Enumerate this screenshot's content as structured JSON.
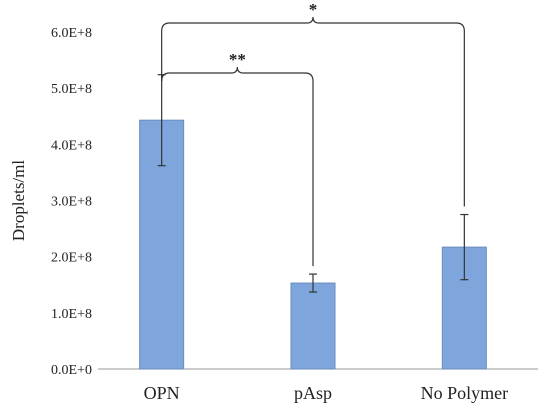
{
  "chart_data": {
    "type": "bar",
    "title": "",
    "xlabel": "",
    "ylabel": "Droplets/ml",
    "categories": [
      "OPN",
      "pAsp",
      "No Polymer"
    ],
    "values": [
      443000000,
      153000000,
      217000000
    ],
    "error": [
      81000000,
      16000000,
      58000000
    ],
    "ylim": [
      0,
      600000000
    ],
    "yticks": [
      0,
      100000000,
      200000000,
      300000000,
      400000000,
      500000000,
      600000000
    ],
    "ytick_labels": [
      "0.0E+0",
      "1.0E+8",
      "2.0E+8",
      "3.0E+8",
      "4.0E+8",
      "5.0E+8",
      "6.0E+8"
    ],
    "grid": false,
    "legend": "none",
    "bar_color": "#7fa6dc",
    "bar_edge_color": "#6a8cbc",
    "significance": [
      {
        "from": "OPN",
        "to": "pAsp",
        "label": "**",
        "bracket_y": 527000000
      },
      {
        "from": "OPN",
        "to": "No Polymer",
        "label": "*",
        "bracket_y": 616000000
      }
    ]
  }
}
